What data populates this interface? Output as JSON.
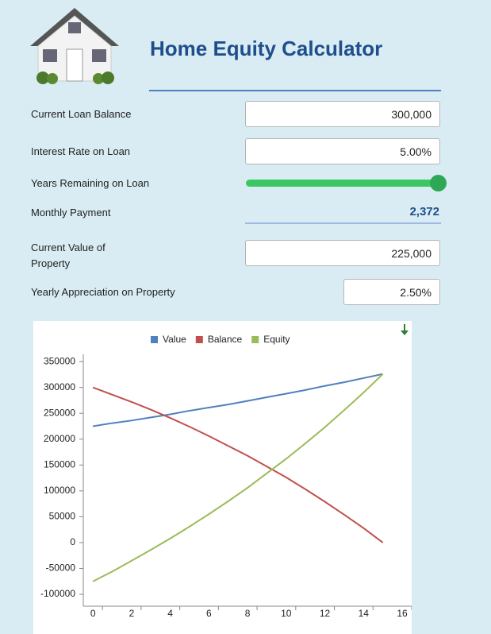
{
  "header": {
    "title": "Home Equity Calculator"
  },
  "fields": [
    {
      "label": "Current Loan Balance",
      "value": "300,000"
    },
    {
      "label": "Interest Rate on Loan",
      "value": "5.00%"
    },
    {
      "label": "Years Remaining on Loan"
    },
    {
      "label": "Monthly Payment",
      "value": "2,372"
    },
    {
      "label": "Current Value of Property",
      "value": "225,000"
    },
    {
      "label": "Yearly Appreciation on Property",
      "value": "2.50%"
    }
  ],
  "chart_data": {
    "type": "line",
    "x": [
      0,
      1,
      2,
      3,
      4,
      5,
      6,
      7,
      8,
      9,
      10,
      11,
      12,
      13,
      14,
      15
    ],
    "series": [
      {
        "name": "Value",
        "color": "#4f81bd",
        "values": [
          225000,
          231000,
          236000,
          242000,
          248000,
          255000,
          261000,
          267000,
          274000,
          281000,
          288000,
          295000,
          303000,
          310000,
          318000,
          326000
        ]
      },
      {
        "name": "Balance",
        "color": "#c0504d",
        "values": [
          300000,
          286000,
          272000,
          257000,
          241000,
          224000,
          206000,
          187000,
          168000,
          147000,
          126000,
          103000,
          79000,
          54000,
          28000,
          0
        ]
      },
      {
        "name": "Equity",
        "color": "#9bbb59",
        "values": [
          -75000,
          -56000,
          -35000,
          -14000,
          8000,
          31000,
          55000,
          80000,
          106000,
          134000,
          162000,
          192000,
          223000,
          256000,
          290000,
          326000
        ]
      }
    ],
    "xlim": [
      -0.5,
      16
    ],
    "xticks": [
      0,
      2,
      4,
      6,
      8,
      10,
      12,
      14,
      16
    ],
    "ylim": [
      -123000,
      364000
    ],
    "yticks": [
      350000,
      300000,
      250000,
      200000,
      150000,
      100000,
      50000,
      0,
      -50000,
      -100000
    ],
    "legend": "top"
  }
}
